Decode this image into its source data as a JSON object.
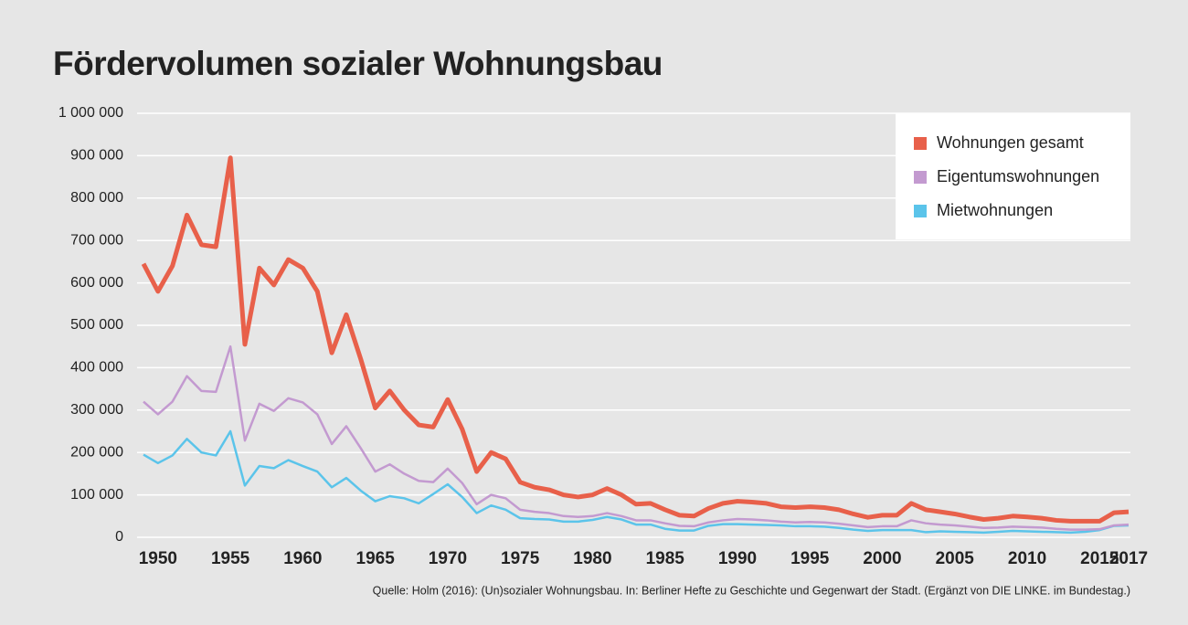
{
  "chart_data": {
    "type": "line",
    "title": "Fördervolumen sozialer Wohnungsbau",
    "source": "Quelle: Holm (2016): (Un)sozialer Wohnungsbau. In: Berliner Hefte zu Geschichte und Gegenwart der Stadt. (Ergänzt von DIE LINKE. im Bundestag.)",
    "x": [
      1949,
      1950,
      1951,
      1952,
      1953,
      1954,
      1955,
      1956,
      1957,
      1958,
      1959,
      1960,
      1961,
      1962,
      1963,
      1964,
      1965,
      1966,
      1967,
      1968,
      1969,
      1970,
      1971,
      1972,
      1973,
      1974,
      1975,
      1976,
      1977,
      1978,
      1979,
      1980,
      1981,
      1982,
      1983,
      1984,
      1985,
      1986,
      1987,
      1988,
      1989,
      1990,
      1991,
      1992,
      1993,
      1994,
      1995,
      1996,
      1997,
      1998,
      1999,
      2000,
      2001,
      2002,
      2003,
      2004,
      2005,
      2006,
      2007,
      2008,
      2009,
      2010,
      2011,
      2012,
      2013,
      2014,
      2015,
      2016,
      2017
    ],
    "series": [
      {
        "name": "Wohnungen gesamt",
        "color": "#e8604a",
        "values": [
          645000,
          580000,
          640000,
          760000,
          690000,
          685000,
          895000,
          455000,
          635000,
          595000,
          655000,
          635000,
          580000,
          435000,
          525000,
          420000,
          305000,
          345000,
          300000,
          265000,
          260000,
          325000,
          255000,
          155000,
          200000,
          185000,
          130000,
          118000,
          112000,
          100000,
          95000,
          100000,
          115000,
          100000,
          78000,
          80000,
          65000,
          52000,
          50000,
          68000,
          80000,
          85000,
          83000,
          80000,
          72000,
          70000,
          72000,
          70000,
          65000,
          55000,
          47000,
          52000,
          52000,
          80000,
          65000,
          60000,
          55000,
          48000,
          42000,
          45000,
          50000,
          48000,
          45000,
          40000,
          38000,
          38000,
          38000,
          58000,
          60000
        ]
      },
      {
        "name": "Eigentumswohnungen",
        "color": "#c39ad0",
        "values": [
          320000,
          290000,
          320000,
          380000,
          345000,
          343000,
          450000,
          228000,
          315000,
          298000,
          328000,
          318000,
          290000,
          220000,
          262000,
          210000,
          155000,
          172000,
          150000,
          133000,
          130000,
          162000,
          128000,
          78000,
          100000,
          92000,
          65000,
          60000,
          57000,
          50000,
          48000,
          50000,
          57000,
          50000,
          40000,
          40000,
          33000,
          27000,
          26000,
          35000,
          40000,
          43000,
          42000,
          40000,
          37000,
          35000,
          36000,
          35000,
          32000,
          28000,
          24000,
          26000,
          26000,
          40000,
          33000,
          30000,
          28000,
          25000,
          22000,
          23000,
          25000,
          24000,
          23000,
          20000,
          18000,
          18000,
          19000,
          28000,
          30000
        ]
      },
      {
        "name": "Mietwohnungen",
        "color": "#5bc4ea",
        "values": [
          195000,
          175000,
          193000,
          232000,
          200000,
          193000,
          250000,
          122000,
          168000,
          163000,
          182000,
          168000,
          155000,
          118000,
          140000,
          110000,
          85000,
          97000,
          92000,
          80000,
          102000,
          125000,
          95000,
          57000,
          75000,
          65000,
          45000,
          43000,
          42000,
          37000,
          37000,
          41000,
          48000,
          42000,
          30000,
          30000,
          20000,
          16000,
          16000,
          27000,
          31000,
          31000,
          30000,
          29000,
          28000,
          26000,
          26000,
          25000,
          22000,
          18000,
          15000,
          17000,
          17000,
          17000,
          12000,
          14000,
          13000,
          12000,
          11000,
          13000,
          15000,
          14000,
          13000,
          12000,
          11000,
          13000,
          17000,
          27000,
          28000
        ]
      }
    ],
    "xlim": [
      1949,
      2017
    ],
    "xticks": [
      1950,
      1955,
      1960,
      1965,
      1970,
      1975,
      1980,
      1985,
      1990,
      1995,
      2000,
      2005,
      2010,
      2015,
      2017
    ],
    "ylim": [
      0,
      1000000
    ],
    "yticks": [
      0,
      {
        "value": 100000,
        "label": "100 000"
      },
      {
        "value": 200000,
        "label": "200 000"
      },
      {
        "value": 300000,
        "label": "300 000"
      },
      {
        "value": 400000,
        "label": "400 000"
      },
      {
        "value": 500000,
        "label": "500 000"
      },
      {
        "value": 600000,
        "label": "600 000"
      },
      {
        "value": 700000,
        "label": "700 000"
      },
      {
        "value": 800000,
        "label": "800 000"
      },
      {
        "value": 900000,
        "label": "900 000"
      },
      {
        "value": 1000000,
        "label": "1 000 000"
      }
    ],
    "grid": true,
    "legend": "upper right"
  }
}
